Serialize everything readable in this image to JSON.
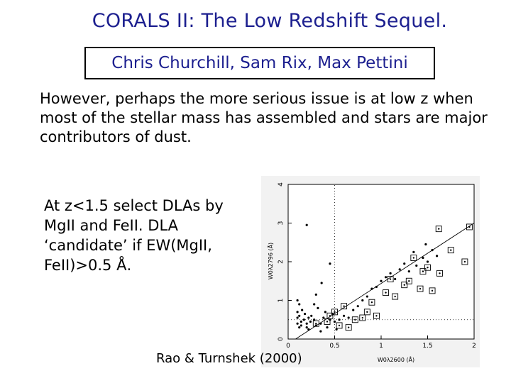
{
  "slide": {
    "title": "CORALS II:  The Low Redshift Sequel.",
    "authors": "Chris Churchill, Sam Rix, Max Pettini",
    "paragraph": "However, perhaps the more serious issue is at low z when most of the stellar mass has assembled and stars are major contributors of dust.",
    "note": "At z<1.5 select DLAs by MgII and FeII.  DLA ‘candidate’ if EW(MgII, FeII)>0.5 Å.",
    "credit": "Rao & Turnshek (2000)"
  },
  "chart_data": {
    "type": "scatter",
    "xlabel": "W0λ2600 (Å)",
    "ylabel": "W0λ2796 (Å)",
    "xlim": [
      0,
      2
    ],
    "ylim": [
      0,
      4
    ],
    "x_ticks": [
      "0",
      "0.5",
      "1",
      "1.5",
      "2"
    ],
    "y_ticks": [
      "0",
      "1",
      "2",
      "3",
      "4"
    ],
    "series": [
      {
        "marker": "dot",
        "points": [
          [
            0.1,
            0.55
          ],
          [
            0.12,
            0.9
          ],
          [
            0.1,
            0.7
          ],
          [
            0.12,
            0.6
          ],
          [
            0.14,
            0.45
          ],
          [
            0.1,
            0.4
          ],
          [
            0.12,
            0.3
          ],
          [
            0.15,
            0.75
          ],
          [
            0.17,
            0.5
          ],
          [
            0.14,
            0.35
          ],
          [
            0.18,
            0.65
          ],
          [
            0.2,
            0.4
          ],
          [
            0.2,
            0.3
          ],
          [
            0.22,
            0.55
          ],
          [
            0.24,
            0.45
          ],
          [
            0.22,
            0.25
          ],
          [
            0.25,
            0.6
          ],
          [
            0.28,
            0.5
          ],
          [
            0.3,
            0.35
          ],
          [
            0.32,
            0.8
          ],
          [
            0.35,
            0.4
          ],
          [
            0.38,
            0.55
          ],
          [
            0.4,
            0.7
          ],
          [
            0.42,
            0.3
          ],
          [
            0.45,
            0.5
          ],
          [
            0.48,
            0.65
          ],
          [
            0.5,
            0.45
          ],
          [
            0.52,
            0.25
          ],
          [
            0.35,
            0.2
          ],
          [
            0.3,
            1.15
          ],
          [
            0.28,
            0.9
          ],
          [
            0.55,
            0.5
          ],
          [
            0.6,
            0.6
          ],
          [
            0.65,
            0.55
          ],
          [
            0.7,
            0.75
          ],
          [
            0.75,
            0.85
          ],
          [
            0.8,
            1.0
          ],
          [
            0.85,
            1.1
          ],
          [
            0.9,
            1.3
          ],
          [
            0.95,
            1.35
          ],
          [
            1.0,
            1.5
          ],
          [
            1.05,
            1.6
          ],
          [
            1.1,
            1.7
          ],
          [
            1.15,
            1.55
          ],
          [
            1.2,
            1.8
          ],
          [
            1.25,
            1.95
          ],
          [
            1.3,
            1.75
          ],
          [
            1.38,
            1.9
          ],
          [
            1.45,
            2.1
          ],
          [
            1.5,
            2.0
          ],
          [
            1.35,
            2.25
          ],
          [
            1.48,
            2.45
          ],
          [
            1.55,
            2.3
          ],
          [
            1.6,
            2.15
          ],
          [
            0.36,
            1.45
          ],
          [
            0.45,
            1.95
          ],
          [
            0.2,
            2.95
          ],
          [
            0.1,
            1.0
          ]
        ]
      },
      {
        "marker": "boxed",
        "points": [
          [
            0.45,
            0.6
          ],
          [
            0.5,
            0.7
          ],
          [
            0.55,
            0.35
          ],
          [
            0.6,
            0.85
          ],
          [
            0.72,
            0.5
          ],
          [
            0.8,
            0.55
          ],
          [
            0.85,
            0.7
          ],
          [
            0.9,
            0.95
          ],
          [
            0.95,
            0.6
          ],
          [
            1.05,
            1.2
          ],
          [
            1.15,
            1.1
          ],
          [
            1.25,
            1.4
          ],
          [
            1.3,
            1.5
          ],
          [
            1.45,
            1.75
          ],
          [
            1.55,
            1.25
          ],
          [
            1.63,
            1.7
          ],
          [
            1.75,
            2.3
          ],
          [
            1.9,
            2.0
          ],
          [
            1.62,
            2.85
          ],
          [
            1.95,
            2.9
          ],
          [
            1.42,
            1.3
          ],
          [
            0.3,
            0.4
          ],
          [
            0.42,
            0.45
          ],
          [
            0.65,
            0.3
          ],
          [
            1.1,
            1.55
          ],
          [
            1.35,
            2.1
          ],
          [
            1.5,
            1.85
          ]
        ]
      }
    ],
    "fit_line": [
      [
        0.08,
        0.0
      ],
      [
        2.0,
        3.0
      ]
    ]
  }
}
